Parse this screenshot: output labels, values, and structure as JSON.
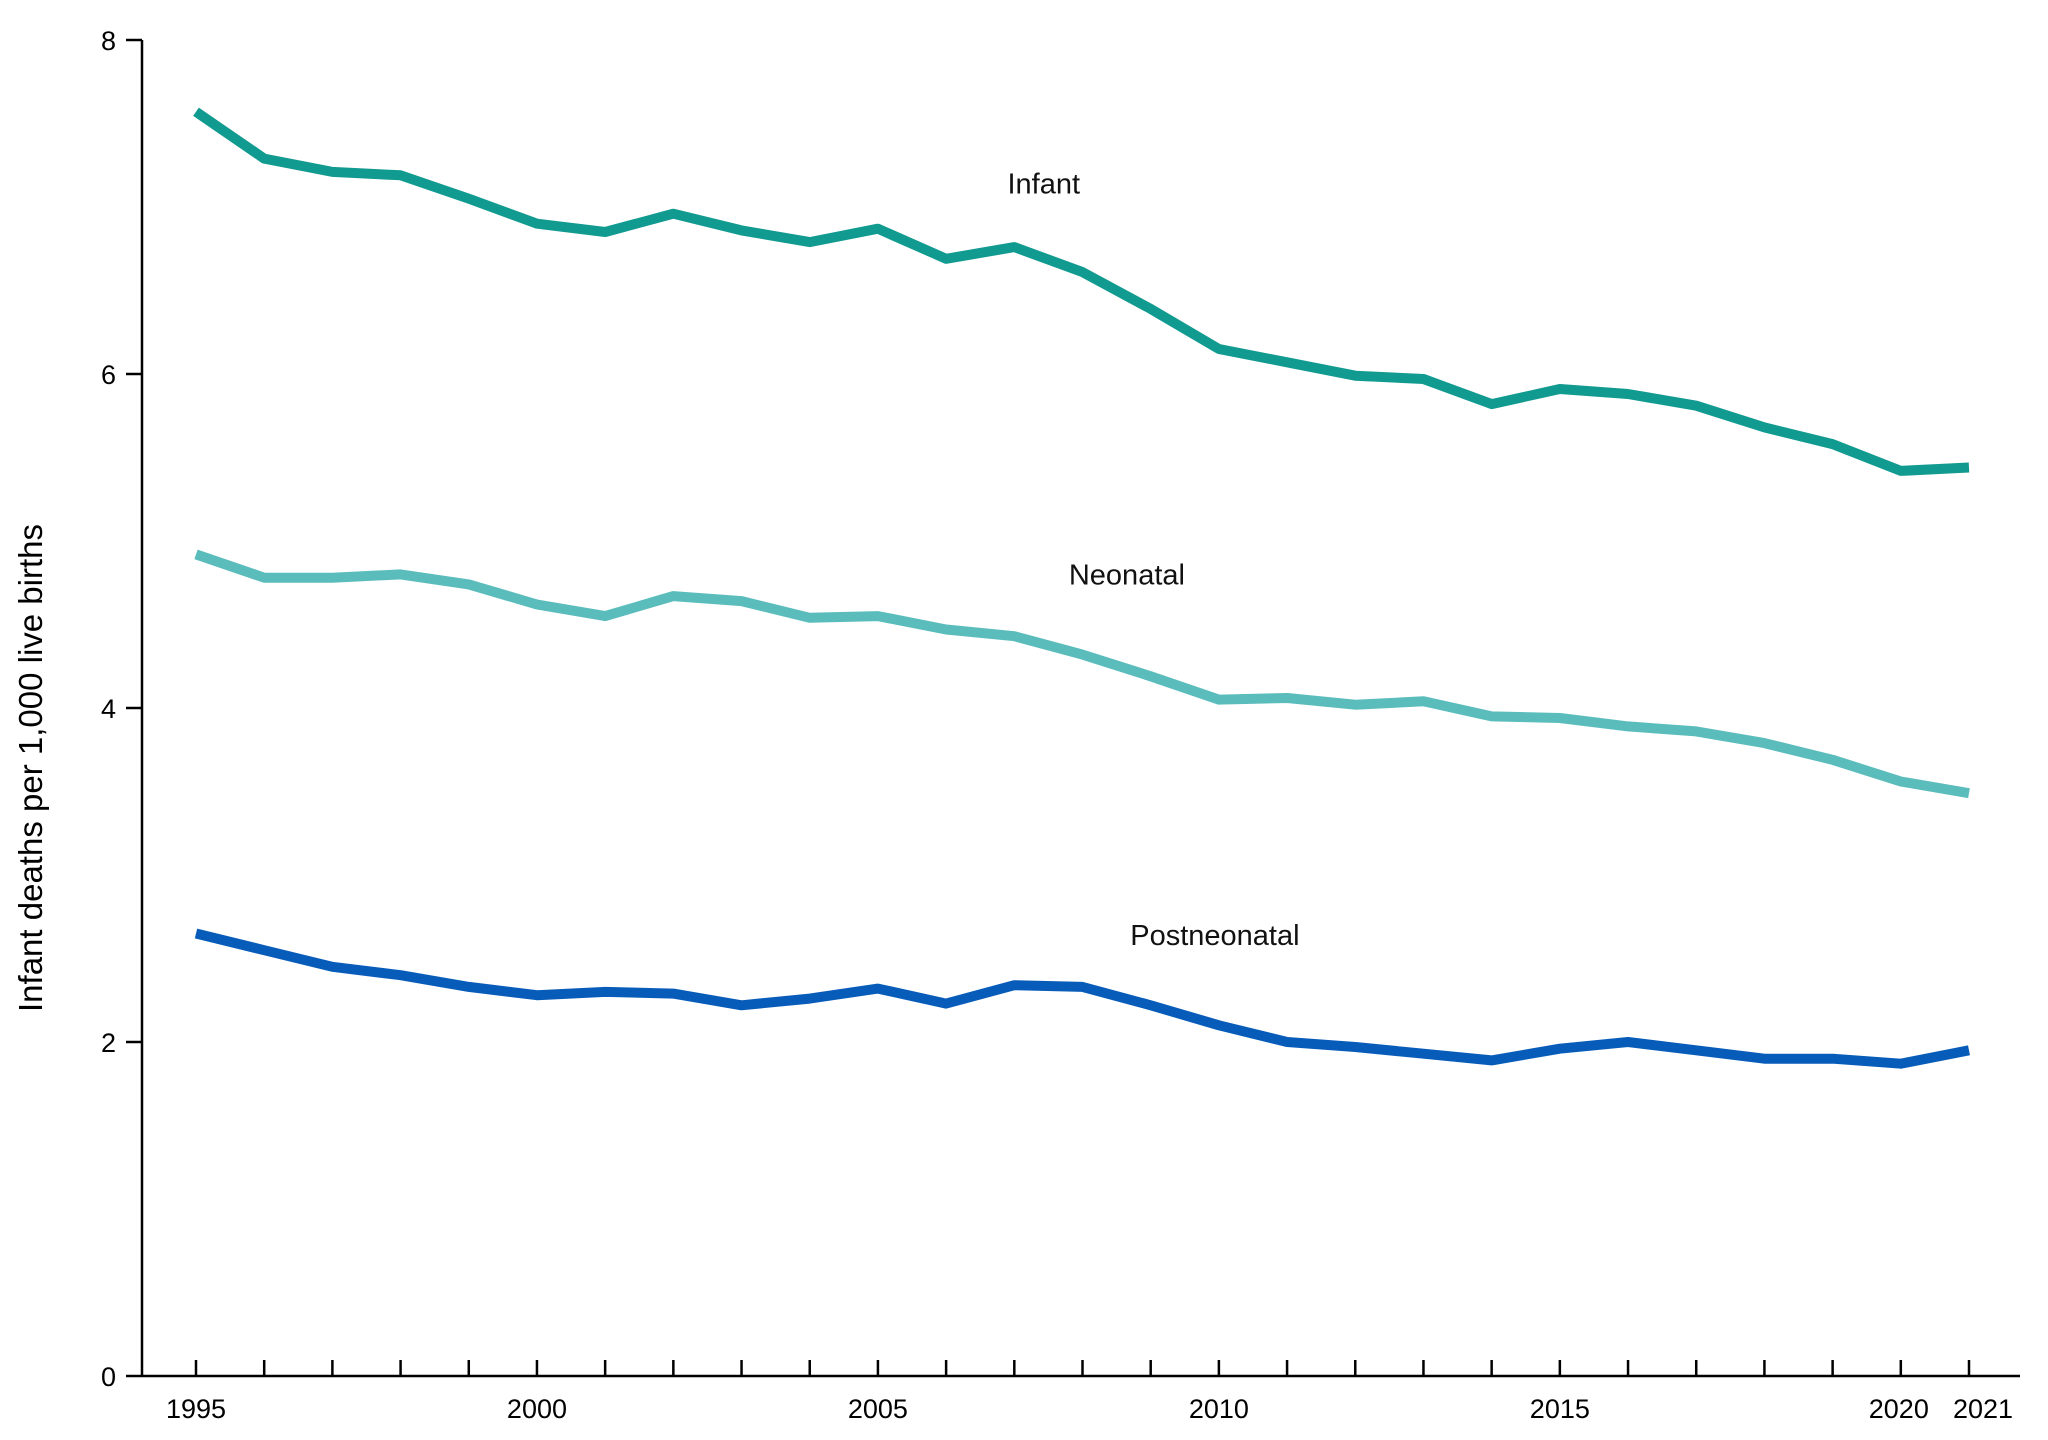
{
  "chart_data": {
    "type": "line",
    "title": "",
    "xlabel": "",
    "ylabel": "Infant deaths per 1,000 live births",
    "xlim": [
      1995,
      2021
    ],
    "ylim": [
      0,
      8
    ],
    "x_ticks": [
      1995,
      2000,
      2005,
      2010,
      2015,
      2020,
      2021
    ],
    "y_ticks": [
      0,
      2,
      4,
      6,
      8
    ],
    "grid": false,
    "legend": "inline",
    "x": [
      1995,
      1996,
      1997,
      1998,
      1999,
      2000,
      2001,
      2002,
      2003,
      2004,
      2005,
      2006,
      2007,
      2008,
      2009,
      2010,
      2011,
      2012,
      2013,
      2014,
      2015,
      2016,
      2017,
      2018,
      2019,
      2020,
      2021
    ],
    "series": [
      {
        "name": "Infant",
        "color": "#119a8f",
        "values": [
          7.57,
          7.29,
          7.21,
          7.19,
          7.05,
          6.9,
          6.85,
          6.96,
          6.86,
          6.79,
          6.87,
          6.69,
          6.76,
          6.61,
          6.39,
          6.15,
          6.07,
          5.99,
          5.97,
          5.82,
          5.91,
          5.88,
          5.81,
          5.68,
          5.58,
          5.42,
          5.44
        ]
      },
      {
        "name": "Neonatal",
        "color": "#5bbcbc",
        "values": [
          4.92,
          4.78,
          4.78,
          4.8,
          4.74,
          4.62,
          4.55,
          4.67,
          4.64,
          4.54,
          4.55,
          4.47,
          4.43,
          4.32,
          4.19,
          4.05,
          4.06,
          4.02,
          4.04,
          3.95,
          3.94,
          3.89,
          3.86,
          3.79,
          3.69,
          3.56,
          3.49
        ]
      },
      {
        "name": "Postneonatal",
        "color": "#085cb9",
        "values": [
          2.65,
          2.55,
          2.45,
          2.4,
          2.33,
          2.28,
          2.3,
          2.29,
          2.22,
          2.26,
          2.32,
          2.23,
          2.34,
          2.33,
          2.22,
          2.1,
          2.0,
          1.97,
          1.93,
          1.89,
          1.96,
          2.0,
          1.95,
          1.9,
          1.9,
          1.87,
          1.95
        ]
      }
    ],
    "annotations": [
      {
        "text": "Infant",
        "x": 2006.9,
        "y": 7.08
      },
      {
        "text": "Neonatal",
        "x": 2007.8,
        "y": 4.74
      },
      {
        "text": "Postneonatal",
        "x": 2008.7,
        "y": 2.58
      }
    ]
  }
}
